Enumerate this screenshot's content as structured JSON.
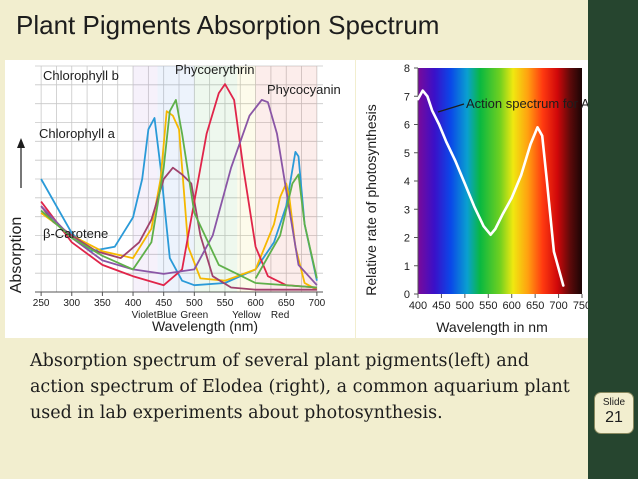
{
  "slide": {
    "title": "Plant Pigments Absorption Spectrum",
    "caption": "Absorption spectrum of several plant pigments(left) and action spectrum of Elodea (right), a common aquarium plant used in lab experiments about photosynthesis.",
    "badge_label": "Slide",
    "badge_number": "21"
  },
  "chart_data": [
    {
      "type": "line",
      "title": "",
      "xlabel": "Wavelength (nm)",
      "ylabel": "Absorption",
      "xlim": [
        240,
        710
      ],
      "x_ticks": [
        250,
        300,
        350,
        400,
        450,
        500,
        550,
        600,
        650,
        700
      ],
      "color_band_labels": [
        "Violet",
        "Blue",
        "Green",
        "Yellow",
        "Red"
      ],
      "grid": true,
      "series": [
        {
          "name": "Chlorophyll a",
          "color": "#2a9ad8",
          "x": [
            250,
            300,
            330,
            370,
            400,
            415,
            425,
            435,
            445,
            460,
            480,
            500,
            550,
            600,
            630,
            650,
            665,
            670,
            680,
            700
          ],
          "y": [
            0.5,
            0.26,
            0.18,
            0.2,
            0.33,
            0.5,
            0.72,
            0.77,
            0.55,
            0.15,
            0.05,
            0.03,
            0.04,
            0.1,
            0.22,
            0.38,
            0.62,
            0.6,
            0.3,
            0.05
          ]
        },
        {
          "name": "Chlorophyll b",
          "color": "#f5b800",
          "x": [
            250,
            300,
            350,
            400,
            430,
            445,
            455,
            465,
            475,
            480,
            490,
            510,
            550,
            600,
            630,
            640,
            650,
            655,
            665,
            680,
            700
          ],
          "y": [
            0.35,
            0.25,
            0.18,
            0.15,
            0.28,
            0.5,
            0.8,
            0.78,
            0.72,
            0.55,
            0.2,
            0.06,
            0.05,
            0.1,
            0.3,
            0.42,
            0.48,
            0.42,
            0.2,
            0.04,
            0.01
          ]
        },
        {
          "name": "β-Carotene",
          "color": "#a0426c",
          "x": [
            250,
            270,
            300,
            340,
            380,
            410,
            430,
            450,
            465,
            480,
            495,
            510,
            530,
            560,
            600,
            700
          ],
          "y": [
            0.38,
            0.31,
            0.25,
            0.18,
            0.15,
            0.22,
            0.32,
            0.5,
            0.55,
            0.52,
            0.48,
            0.25,
            0.07,
            0.02,
            0.01,
            0.01
          ]
        },
        {
          "name": "Phycoerythrin",
          "color": "#e0254a",
          "x": [
            250,
            300,
            350,
            400,
            450,
            480,
            500,
            520,
            540,
            550,
            565,
            580,
            600,
            620,
            650,
            700
          ],
          "y": [
            0.4,
            0.22,
            0.12,
            0.07,
            0.03,
            0.1,
            0.4,
            0.7,
            0.88,
            0.92,
            0.85,
            0.55,
            0.2,
            0.07,
            0.03,
            0.02
          ]
        },
        {
          "name": "Phycocyanin",
          "color": "#8a56a6",
          "x": [
            250,
            300,
            350,
            400,
            450,
            500,
            530,
            560,
            590,
            610,
            620,
            635,
            650,
            670,
            700
          ],
          "y": [
            0.38,
            0.24,
            0.14,
            0.1,
            0.08,
            0.1,
            0.25,
            0.55,
            0.78,
            0.85,
            0.84,
            0.7,
            0.45,
            0.12,
            0.03
          ]
        },
        {
          "name": "",
          "color": "#5fb04a",
          "x": [
            250,
            300,
            350,
            400,
            430,
            450,
            460,
            470,
            480,
            500,
            540,
            600,
            700
          ],
          "y": [
            0.36,
            0.24,
            0.16,
            0.1,
            0.22,
            0.55,
            0.8,
            0.85,
            0.7,
            0.35,
            0.12,
            0.04,
            0.02
          ]
        },
        {
          "name": "",
          "color": "#5fb04a",
          "x": [
            600,
            640,
            660,
            670,
            680,
            700
          ],
          "y": [
            0.06,
            0.25,
            0.48,
            0.52,
            0.3,
            0.06
          ]
        }
      ]
    },
    {
      "type": "line",
      "title": "",
      "xlabel": "Wavelength in nm",
      "ylabel": "Relative rate of photosynthesis",
      "xlim": [
        400,
        750
      ],
      "ylim": [
        0,
        8
      ],
      "x_ticks": [
        400,
        450,
        500,
        550,
        600,
        650,
        700,
        750
      ],
      "y_ticks": [
        0,
        1,
        2,
        3,
        4,
        5,
        6,
        7,
        8
      ],
      "grid": false,
      "background": "visible spectrum gradient",
      "annotation": "Action spectrum for Anacharis sp.",
      "series": [
        {
          "name": "",
          "color": "#ffffff",
          "x": [
            400,
            410,
            420,
            430,
            445,
            460,
            480,
            500,
            520,
            540,
            555,
            565,
            580,
            600,
            620,
            640,
            655,
            665,
            675,
            690,
            710
          ],
          "y": [
            6.9,
            7.2,
            7.0,
            6.5,
            6.0,
            5.4,
            4.7,
            3.9,
            3.1,
            2.4,
            2.1,
            2.3,
            2.8,
            3.4,
            4.2,
            5.3,
            5.9,
            5.6,
            4.0,
            1.5,
            0.3
          ]
        }
      ]
    }
  ]
}
